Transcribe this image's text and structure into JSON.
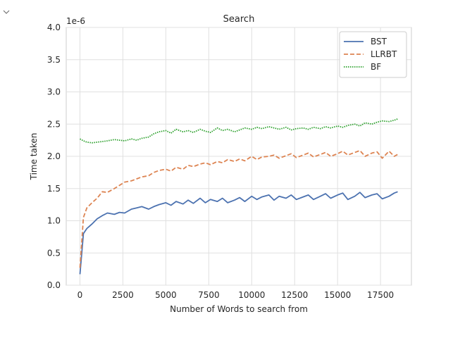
{
  "chart_data": {
    "type": "line",
    "title": "Search",
    "xlabel": "Number of Words to search from",
    "ylabel": "Time taken",
    "y_offset_text": "1e-6",
    "xlim": [
      -800,
      19300
    ],
    "ylim": [
      0.0,
      4.0
    ],
    "x_ticks": [
      0,
      2500,
      5000,
      7500,
      10000,
      12500,
      15000,
      17500
    ],
    "x_tick_labels": [
      "0",
      "2500",
      "5000",
      "7500",
      "10000",
      "12500",
      "15000",
      "17500"
    ],
    "y_ticks": [
      0.0,
      0.5,
      1.0,
      1.5,
      2.0,
      2.5,
      3.0,
      3.5,
      4.0
    ],
    "y_tick_labels": [
      "0.0",
      "0.5",
      "1.0",
      "1.5",
      "2.0",
      "2.5",
      "3.0",
      "3.5",
      "4.0"
    ],
    "grid": true,
    "legend_position": "top-right",
    "series": [
      {
        "name": "BST",
        "color": "#4c72b0",
        "dash": "solid",
        "x": [
          0,
          200,
          400,
          700,
          1000,
          1300,
          1600,
          2000,
          2300,
          2600,
          3000,
          3300,
          3600,
          4000,
          4300,
          4600,
          5000,
          5300,
          5600,
          6000,
          6300,
          6600,
          7000,
          7300,
          7600,
          8000,
          8300,
          8600,
          9000,
          9300,
          9600,
          10000,
          10300,
          10600,
          11000,
          11300,
          11600,
          12000,
          12300,
          12600,
          13000,
          13300,
          13600,
          14000,
          14300,
          14600,
          15000,
          15300,
          15600,
          16000,
          16300,
          16600,
          17000,
          17300,
          17600,
          18000,
          18300,
          18500
        ],
        "y": [
          0.17,
          0.8,
          0.88,
          0.95,
          1.03,
          1.08,
          1.12,
          1.1,
          1.13,
          1.12,
          1.18,
          1.2,
          1.22,
          1.18,
          1.22,
          1.25,
          1.28,
          1.24,
          1.3,
          1.26,
          1.32,
          1.27,
          1.35,
          1.28,
          1.33,
          1.3,
          1.35,
          1.28,
          1.32,
          1.36,
          1.3,
          1.38,
          1.33,
          1.37,
          1.4,
          1.32,
          1.38,
          1.35,
          1.4,
          1.33,
          1.37,
          1.4,
          1.33,
          1.38,
          1.42,
          1.35,
          1.4,
          1.43,
          1.33,
          1.38,
          1.44,
          1.36,
          1.4,
          1.42,
          1.34,
          1.38,
          1.43,
          1.45
        ]
      },
      {
        "name": "LLRBT",
        "color": "#dd8452",
        "dash": "dashed",
        "x": [
          0,
          200,
          400,
          700,
          1000,
          1300,
          1600,
          2000,
          2300,
          2600,
          3000,
          3300,
          3600,
          4000,
          4300,
          4600,
          5000,
          5300,
          5600,
          6000,
          6300,
          6600,
          7000,
          7300,
          7600,
          8000,
          8300,
          8600,
          9000,
          9300,
          9600,
          10000,
          10300,
          10600,
          11000,
          11300,
          11600,
          12000,
          12300,
          12600,
          13000,
          13300,
          13600,
          14000,
          14300,
          14600,
          15000,
          15300,
          15600,
          16000,
          16300,
          16600,
          17000,
          17300,
          17600,
          18000,
          18300,
          18500
        ],
        "y": [
          0.27,
          1.05,
          1.2,
          1.28,
          1.35,
          1.45,
          1.44,
          1.5,
          1.55,
          1.6,
          1.62,
          1.65,
          1.68,
          1.7,
          1.75,
          1.78,
          1.8,
          1.77,
          1.83,
          1.8,
          1.86,
          1.84,
          1.88,
          1.9,
          1.87,
          1.92,
          1.9,
          1.95,
          1.92,
          1.96,
          1.93,
          2.0,
          1.95,
          1.99,
          2.0,
          2.02,
          1.97,
          2.01,
          2.04,
          1.98,
          2.02,
          2.05,
          1.99,
          2.03,
          2.06,
          2.0,
          2.04,
          2.08,
          2.02,
          2.06,
          2.09,
          2.0,
          2.05,
          2.07,
          1.97,
          2.08,
          2.0,
          2.03
        ]
      },
      {
        "name": "BF",
        "color": "#2ca02c",
        "dash": "dotted",
        "x": [
          0,
          200,
          400,
          700,
          1000,
          1300,
          1600,
          2000,
          2300,
          2600,
          3000,
          3300,
          3600,
          4000,
          4300,
          4600,
          5000,
          5300,
          5600,
          6000,
          6300,
          6600,
          7000,
          7300,
          7600,
          8000,
          8300,
          8600,
          9000,
          9300,
          9600,
          10000,
          10300,
          10600,
          11000,
          11300,
          11600,
          12000,
          12300,
          12600,
          13000,
          13300,
          13600,
          14000,
          14300,
          14600,
          15000,
          15300,
          15600,
          16000,
          16300,
          16600,
          17000,
          17300,
          17600,
          18000,
          18300,
          18500
        ],
        "y": [
          2.27,
          2.24,
          2.22,
          2.21,
          2.22,
          2.23,
          2.24,
          2.26,
          2.25,
          2.24,
          2.27,
          2.25,
          2.28,
          2.3,
          2.35,
          2.38,
          2.4,
          2.36,
          2.42,
          2.38,
          2.4,
          2.37,
          2.42,
          2.39,
          2.37,
          2.44,
          2.4,
          2.42,
          2.38,
          2.41,
          2.44,
          2.42,
          2.45,
          2.43,
          2.46,
          2.44,
          2.42,
          2.45,
          2.41,
          2.43,
          2.44,
          2.42,
          2.45,
          2.43,
          2.46,
          2.44,
          2.47,
          2.45,
          2.48,
          2.5,
          2.47,
          2.52,
          2.5,
          2.53,
          2.55,
          2.54,
          2.56,
          2.58
        ]
      }
    ]
  }
}
